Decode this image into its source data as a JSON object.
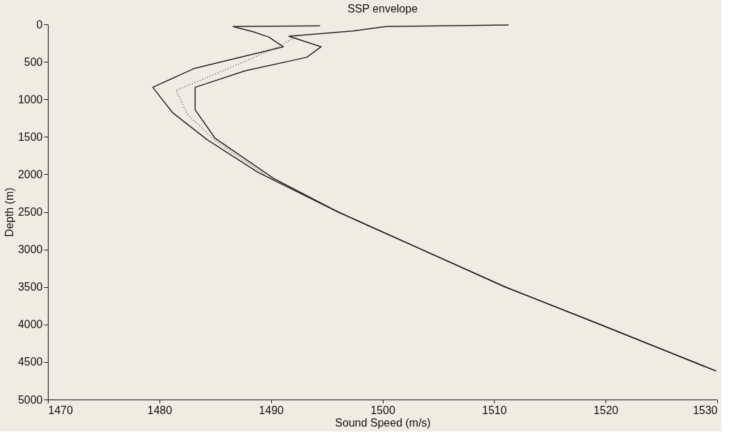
{
  "chart_data": {
    "type": "line",
    "title": "SSP envelope",
    "xlabel": "Sound Speed (m/s)",
    "ylabel": "Depth (m)",
    "xlim": [
      1470,
      1530
    ],
    "xticks": [
      1470,
      1480,
      1490,
      1500,
      1510,
      1520,
      1530
    ],
    "ylim": [
      5000,
      0
    ],
    "yticks": [
      0,
      500,
      1000,
      1500,
      2000,
      2500,
      3000,
      3500,
      4000,
      4500,
      5000
    ],
    "grid": false,
    "marker": "none",
    "series": [
      {
        "color": "#222222",
        "line_style": "solid",
        "x": [
          1494.4,
          1486.6,
          1488.4,
          1489.8,
          1491.1,
          1483.1,
          1479.4,
          1481.2,
          1484.3,
          1488.8,
          1496.0,
          1503.5,
          1511.0,
          1519.5,
          1529.9
        ],
        "values": [
          20,
          30,
          100,
          170,
          300,
          590,
          840,
          1180,
          1540,
          1970,
          2500,
          3000,
          3500,
          4000,
          4620
        ]
      },
      {
        "color": "#222222",
        "line_style": "solid",
        "x": [
          1511.3,
          1500.3,
          1497.3,
          1491.6,
          1494.5,
          1493.2,
          1487.7,
          1483.2,
          1483.2,
          1485.0,
          1490.2,
          1496.0,
          1503.5,
          1511.0,
          1519.5,
          1529.9
        ],
        "values": [
          10,
          30,
          90,
          160,
          300,
          440,
          620,
          840,
          1140,
          1520,
          2050,
          2500,
          3000,
          3500,
          4000,
          4620
        ]
      },
      {
        "color": "#444444",
        "line_style": "dotted",
        "x": [
          1492.5,
          1490.5,
          1486.0,
          1481.5,
          1482.5,
          1485.0,
          1489.5
        ],
        "values": [
          150,
          310,
          600,
          880,
          1200,
          1550,
          2010
        ]
      }
    ]
  }
}
